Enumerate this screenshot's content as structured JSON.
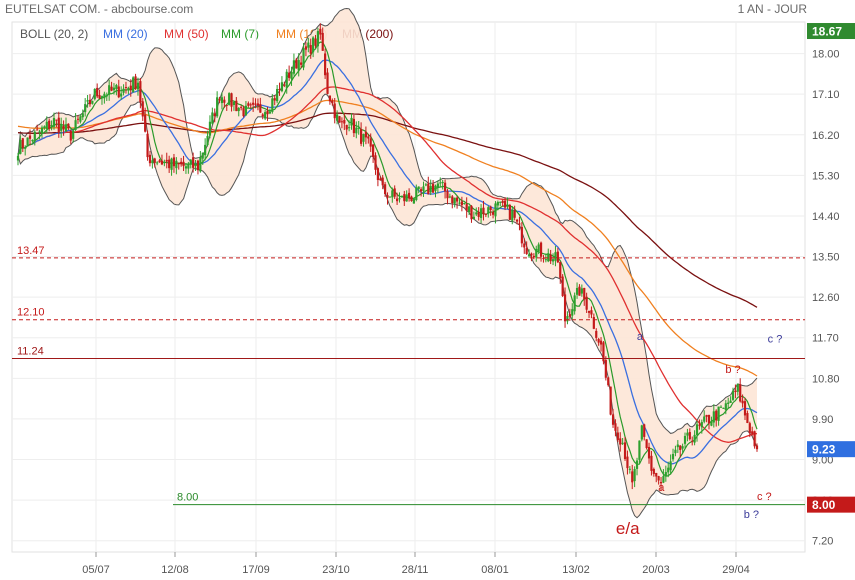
{
  "header": {
    "title": "EUTELSAT COM. - abcbourse.com",
    "period": "1 AN - JOUR"
  },
  "legend": [
    {
      "label": "BOLL (20, 2)",
      "color": "#555555"
    },
    {
      "label": "MM (20)",
      "color": "#3a6fe0"
    },
    {
      "label": "MM (50)",
      "color": "#e03030"
    },
    {
      "label": "MM (7)",
      "color": "#2a9a2a"
    },
    {
      "label": "MM (100)",
      "color": "#f08020"
    },
    {
      "label": "MM (200)",
      "color": "#7a1010"
    }
  ],
  "colors": {
    "up": "#2ea02e",
    "down": "#c41a1a",
    "band_fill": "#fde5d6",
    "band_line": "#555555",
    "mm20": "#3a6fe0",
    "mm50": "#e03030",
    "mm7": "#2a9a2a",
    "mm100": "#f08020",
    "mm200": "#7a1010",
    "last_price_bg": "#2f6fe0",
    "top_badge_bg": "#2f8a2f",
    "support_bg": "#c41a1a"
  },
  "chart_data": {
    "type": "candlestick",
    "x_ticks": [
      "05/07",
      "12/08",
      "17/09",
      "23/10",
      "28/11",
      "08/01",
      "13/02",
      "20/03",
      "29/04"
    ],
    "y_ticks": [
      18.0,
      17.1,
      16.2,
      15.3,
      14.4,
      13.5,
      12.6,
      11.7,
      10.8,
      9.9,
      9.0,
      8.1,
      7.2
    ],
    "ylim": [
      6.95,
      18.7
    ],
    "badges": {
      "top": "18.67",
      "last": "9.23",
      "support": "8.00"
    },
    "hlines": [
      {
        "value": 13.47,
        "label": "13.47",
        "style": "dashed",
        "color": "#c41a1a"
      },
      {
        "value": 12.1,
        "label": "12.10",
        "style": "dashed",
        "color": "#c41a1a"
      },
      {
        "value": 11.24,
        "label": "11.24",
        "style": "solid",
        "color": "#a01818"
      },
      {
        "value": 8.0,
        "label": "8.00",
        "style": "solid",
        "color": "#2a8a2a"
      }
    ],
    "annotations": [
      {
        "text": "e/a",
        "value": 7.35,
        "at": 0.807,
        "color": "#c41a1a"
      },
      {
        "text": "a",
        "value": 11.65,
        "at": 0.823,
        "color": "#3b3b9a"
      },
      {
        "text": "a",
        "value": 8.3,
        "at": 0.851,
        "color": "#c41a1a"
      },
      {
        "text": "b ?",
        "value": 10.92,
        "at": 0.945,
        "color": "#c41a1a"
      },
      {
        "text": "c ?",
        "value": 11.6,
        "at": 1.0,
        "color": "#3b3b9a"
      },
      {
        "text": "c ?",
        "value": 8.1,
        "at": 0.986,
        "color": "#c41a1a"
      },
      {
        "text": "b ?",
        "value": 7.7,
        "at": 0.969,
        "color": "#3b3b9a"
      }
    ],
    "close_anchors": [
      [
        0,
        15.9
      ],
      [
        15,
        16.5
      ],
      [
        22,
        16.2
      ],
      [
        32,
        17.1
      ],
      [
        44,
        17.2
      ],
      [
        50,
        17.4
      ],
      [
        54,
        15.7
      ],
      [
        66,
        15.5
      ],
      [
        75,
        15.5
      ],
      [
        84,
        17.1
      ],
      [
        95,
        16.7
      ],
      [
        104,
        16.8
      ],
      [
        116,
        17.8
      ],
      [
        126,
        18.4
      ],
      [
        129,
        17.2
      ],
      [
        134,
        16.4
      ],
      [
        138,
        16.5
      ],
      [
        146,
        15.95
      ],
      [
        152,
        14.95
      ],
      [
        159,
        14.75
      ],
      [
        168,
        14.9
      ],
      [
        175,
        15.1
      ],
      [
        182,
        14.75
      ],
      [
        190,
        14.45
      ],
      [
        200,
        14.6
      ],
      [
        206,
        14.45
      ],
      [
        212,
        13.7
      ],
      [
        218,
        13.6
      ],
      [
        225,
        13.4
      ],
      [
        228,
        12.1
      ],
      [
        234,
        12.75
      ],
      [
        238,
        12.35
      ],
      [
        243,
        11.5
      ],
      [
        248,
        9.8
      ],
      [
        252,
        9.4
      ],
      [
        256,
        8.4
      ],
      [
        260,
        9.6
      ],
      [
        264,
        8.8
      ],
      [
        268,
        8.45
      ],
      [
        274,
        9.1
      ],
      [
        280,
        9.5
      ],
      [
        288,
        9.9
      ],
      [
        294,
        10.1
      ],
      [
        300,
        10.55
      ],
      [
        303,
        10.0
      ],
      [
        308,
        9.23
      ]
    ],
    "ma_final": {
      "mm20": 9.8,
      "mm50": 10.0,
      "mm100": 12.0,
      "mm200": 14.3,
      "bb_upper": 10.6,
      "bb_lower": 9.1
    }
  }
}
